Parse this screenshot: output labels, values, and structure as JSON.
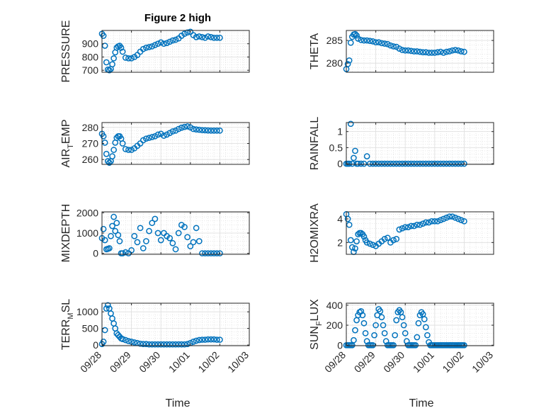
{
  "figure": {
    "title": "Figure 2 high"
  },
  "chart_data": [
    {
      "type": "scatter",
      "ylabel": "PRESSURE",
      "ylabel_sub": "",
      "ylabel_tail": "",
      "yticks": [
        700,
        800,
        900
      ],
      "ytick_labels": [
        "700",
        "800",
        "900"
      ],
      "ylim": [
        685,
        1000
      ],
      "x": [
        0.0,
        0.05,
        0.1,
        0.15,
        0.2,
        0.25,
        0.3,
        0.35,
        0.4,
        0.45,
        0.5,
        0.55,
        0.6,
        0.65,
        0.7,
        0.8,
        0.9,
        1.0,
        1.1,
        1.2,
        1.3,
        1.4,
        1.5,
        1.6,
        1.7,
        1.8,
        1.9,
        2.0,
        2.1,
        2.2,
        2.3,
        2.4,
        2.5,
        2.6,
        2.7,
        2.8,
        2.9,
        3.0,
        3.1,
        3.2,
        3.3,
        3.4,
        3.5,
        3.6,
        3.7,
        3.8,
        3.9,
        4.0
      ],
      "values": [
        975,
        960,
        885,
        760,
        705,
        700,
        710,
        745,
        790,
        835,
        870,
        880,
        885,
        870,
        840,
        795,
        790,
        790,
        800,
        815,
        840,
        860,
        870,
        875,
        880,
        890,
        900,
        910,
        900,
        905,
        915,
        925,
        930,
        940,
        960,
        975,
        985,
        990,
        965,
        950,
        955,
        950,
        945,
        955,
        950,
        945,
        945,
        945
      ],
      "xlim": [
        0,
        5
      ]
    },
    {
      "type": "scatter",
      "ylabel": "THETA",
      "ylabel_sub": "",
      "ylabel_tail": "",
      "yticks": [
        280,
        285
      ],
      "ytick_labels": [
        "280",
        "285"
      ],
      "ylim": [
        278,
        287.2
      ],
      "x": [
        0.0,
        0.05,
        0.1,
        0.15,
        0.2,
        0.25,
        0.3,
        0.35,
        0.4,
        0.5,
        0.6,
        0.7,
        0.8,
        0.9,
        1.0,
        1.1,
        1.2,
        1.3,
        1.4,
        1.5,
        1.6,
        1.7,
        1.8,
        1.9,
        2.0,
        2.1,
        2.2,
        2.3,
        2.4,
        2.5,
        2.6,
        2.7,
        2.8,
        2.9,
        3.0,
        3.1,
        3.2,
        3.3,
        3.4,
        3.5,
        3.6,
        3.7,
        3.8,
        3.9,
        4.0
      ],
      "values": [
        278.7,
        279.8,
        280.6,
        284.5,
        285.8,
        286.3,
        286.4,
        286.1,
        285.4,
        285.1,
        285.0,
        285.0,
        284.9,
        284.8,
        284.6,
        284.6,
        284.4,
        284.3,
        284.2,
        283.9,
        283.7,
        283.6,
        283.2,
        282.9,
        282.8,
        282.8,
        282.7,
        282.6,
        282.6,
        282.5,
        282.4,
        282.4,
        282.3,
        282.3,
        282.3,
        282.4,
        282.5,
        282.3,
        282.5,
        282.6,
        282.8,
        282.9,
        282.8,
        282.6,
        282.5
      ],
      "xlim": [
        0,
        5
      ]
    },
    {
      "type": "scatter",
      "ylabel": "AIR",
      "ylabel_sub": "T",
      "ylabel_tail": "EMP",
      "yticks": [
        260,
        270,
        280
      ],
      "ytick_labels": [
        "260",
        "270",
        "280"
      ],
      "ylim": [
        257,
        283
      ],
      "x": [
        0.0,
        0.05,
        0.1,
        0.15,
        0.2,
        0.25,
        0.3,
        0.35,
        0.4,
        0.45,
        0.5,
        0.55,
        0.6,
        0.65,
        0.7,
        0.8,
        0.9,
        1.0,
        1.1,
        1.2,
        1.3,
        1.4,
        1.5,
        1.6,
        1.7,
        1.8,
        1.9,
        2.0,
        2.1,
        2.2,
        2.3,
        2.4,
        2.5,
        2.6,
        2.7,
        2.8,
        2.9,
        3.0,
        3.1,
        3.2,
        3.3,
        3.4,
        3.5,
        3.6,
        3.7,
        3.8,
        3.9,
        4.0
      ],
      "values": [
        276,
        274.5,
        270.5,
        263.5,
        259,
        258,
        259,
        262,
        266,
        270.5,
        273.5,
        274.5,
        274.5,
        273,
        270,
        266.5,
        266,
        266,
        267,
        268.5,
        270,
        272,
        273,
        273.5,
        274,
        274.5,
        275.5,
        276,
        274.8,
        275.5,
        276.5,
        277.5,
        278,
        279,
        279.8,
        280.3,
        280.6,
        280,
        279,
        278.7,
        278.5,
        278.3,
        278.2,
        278.1,
        278,
        278,
        278,
        278
      ],
      "xlim": [
        0,
        5
      ]
    },
    {
      "type": "scatter",
      "ylabel": "RAINFALL",
      "ylabel_sub": "",
      "ylabel_tail": "",
      "yticks": [
        0,
        0.5,
        1
      ],
      "ytick_labels": [
        "0",
        "0.5",
        "1"
      ],
      "ylim": [
        -0.02,
        1.28
      ],
      "x": [
        0.0,
        0.05,
        0.1,
        0.15,
        0.2,
        0.25,
        0.3,
        0.35,
        0.4,
        0.5,
        0.6,
        0.7,
        0.8,
        0.9,
        1.0,
        1.1,
        1.2,
        1.3,
        1.4,
        1.5,
        1.6,
        1.7,
        1.8,
        1.9,
        2.0,
        2.1,
        2.2,
        2.3,
        2.4,
        2.5,
        2.6,
        2.7,
        2.8,
        2.9,
        3.0,
        3.1,
        3.2,
        3.3,
        3.4,
        3.5,
        3.6,
        3.7,
        3.8,
        3.9,
        4.0
      ],
      "values": [
        0,
        0,
        0,
        1.24,
        0,
        0.18,
        0.4,
        0,
        0,
        0,
        0,
        0.23,
        0,
        0,
        0,
        0,
        0,
        0,
        0,
        0,
        0,
        0,
        0,
        0,
        0,
        0,
        0,
        0,
        0,
        0,
        0,
        0,
        0,
        0,
        0,
        0,
        0,
        0,
        0,
        0,
        0,
        0,
        0,
        0,
        0
      ],
      "xlim": [
        0,
        5
      ]
    },
    {
      "type": "scatter",
      "ylabel": "MIXDEPTH",
      "ylabel_sub": "",
      "ylabel_tail": "",
      "yticks": [
        0,
        1000,
        2000
      ],
      "ytick_labels": [
        "0",
        "1000",
        "2000"
      ],
      "ylim": [
        -50,
        2050
      ],
      "x": [
        0.0,
        0.05,
        0.1,
        0.15,
        0.2,
        0.25,
        0.3,
        0.35,
        0.4,
        0.45,
        0.5,
        0.55,
        0.6,
        0.65,
        0.7,
        0.8,
        0.9,
        1.0,
        1.1,
        1.2,
        1.3,
        1.4,
        1.5,
        1.6,
        1.7,
        1.8,
        1.9,
        2.0,
        2.1,
        2.2,
        2.3,
        2.4,
        2.5,
        2.6,
        2.7,
        2.8,
        2.9,
        3.0,
        3.1,
        3.2,
        3.3,
        3.4,
        3.5,
        3.6,
        3.7,
        3.8,
        3.9,
        4.0
      ],
      "values": [
        750,
        1200,
        650,
        200,
        220,
        250,
        850,
        1350,
        1800,
        1100,
        1500,
        900,
        600,
        0,
        0,
        50,
        0,
        150,
        850,
        550,
        1250,
        250,
        600,
        1100,
        1500,
        1700,
        1000,
        650,
        1000,
        850,
        750,
        500,
        200,
        1000,
        1400,
        1300,
        800,
        350,
        550,
        1250,
        600,
        0,
        0,
        0,
        0,
        0,
        0,
        0
      ],
      "xlim": [
        0,
        5
      ]
    },
    {
      "type": "scatter",
      "ylabel": "H2OMIXRA",
      "ylabel_sub": "",
      "ylabel_tail": "",
      "yticks": [
        2,
        4
      ],
      "ytick_labels": [
        "2",
        "4"
      ],
      "ylim": [
        1,
        4.6
      ],
      "x": [
        0.0,
        0.05,
        0.1,
        0.15,
        0.2,
        0.25,
        0.3,
        0.35,
        0.4,
        0.45,
        0.5,
        0.55,
        0.6,
        0.65,
        0.7,
        0.8,
        0.9,
        1.0,
        1.1,
        1.2,
        1.3,
        1.4,
        1.5,
        1.6,
        1.7,
        1.8,
        1.9,
        2.0,
        2.1,
        2.2,
        2.3,
        2.4,
        2.5,
        2.6,
        2.7,
        2.8,
        2.9,
        3.0,
        3.1,
        3.2,
        3.3,
        3.4,
        3.5,
        3.6,
        3.7,
        3.8,
        3.9,
        4.0
      ],
      "values": [
        4.4,
        4.0,
        3.5,
        2.2,
        1.6,
        1.2,
        1.5,
        2.1,
        2.7,
        2.8,
        2.8,
        2.7,
        2.5,
        2.2,
        2.0,
        1.9,
        1.8,
        1.7,
        1.9,
        2.1,
        2.3,
        2.4,
        2.0,
        2.2,
        2.3,
        3.1,
        3.2,
        3.3,
        3.3,
        3.4,
        3.4,
        3.5,
        3.5,
        3.6,
        3.7,
        3.7,
        3.8,
        3.8,
        3.8,
        3.9,
        4.0,
        4.1,
        4.2,
        4.2,
        4.1,
        4.0,
        3.9,
        3.8
      ],
      "xlim": [
        0,
        5
      ]
    },
    {
      "type": "scatter",
      "ylabel": "TERR",
      "ylabel_sub": "M",
      "ylabel_tail": "SL",
      "yticks": [
        0,
        500,
        1000
      ],
      "ytick_labels": [
        "0",
        "500",
        "1000"
      ],
      "ylim": [
        -20,
        1260
      ],
      "x": [
        0.0,
        0.05,
        0.1,
        0.15,
        0.2,
        0.25,
        0.3,
        0.35,
        0.4,
        0.45,
        0.5,
        0.55,
        0.6,
        0.65,
        0.7,
        0.8,
        0.9,
        1.0,
        1.1,
        1.2,
        1.3,
        1.4,
        1.5,
        1.6,
        1.7,
        1.8,
        1.9,
        2.0,
        2.1,
        2.2,
        2.3,
        2.4,
        2.5,
        2.6,
        2.7,
        2.8,
        2.9,
        3.0,
        3.1,
        3.2,
        3.3,
        3.4,
        3.5,
        3.6,
        3.7,
        3.8,
        3.9,
        4.0
      ],
      "values": [
        30,
        100,
        450,
        1100,
        1200,
        1100,
        950,
        800,
        650,
        500,
        350,
        300,
        250,
        200,
        180,
        150,
        120,
        100,
        80,
        60,
        40,
        30,
        30,
        20,
        20,
        20,
        20,
        20,
        20,
        20,
        20,
        20,
        20,
        20,
        20,
        20,
        30,
        60,
        100,
        130,
        150,
        160,
        160,
        170,
        170,
        170,
        160,
        160
      ],
      "xlim": [
        0,
        5
      ]
    },
    {
      "type": "scatter",
      "ylabel": "SUN",
      "ylabel_sub": "F",
      "ylabel_tail": "LUX",
      "yticks": [
        0,
        200,
        400
      ],
      "ytick_labels": [
        "0",
        "200",
        "400"
      ],
      "ylim": [
        -5,
        420
      ],
      "x": [
        0.0,
        0.05,
        0.1,
        0.15,
        0.2,
        0.25,
        0.3,
        0.35,
        0.4,
        0.45,
        0.5,
        0.55,
        0.6,
        0.65,
        0.7,
        0.75,
        0.8,
        0.85,
        0.9,
        0.95,
        1.0,
        1.05,
        1.1,
        1.15,
        1.2,
        1.25,
        1.3,
        1.35,
        1.4,
        1.45,
        1.5,
        1.55,
        1.6,
        1.65,
        1.7,
        1.75,
        1.8,
        1.85,
        1.9,
        1.95,
        2.0,
        2.05,
        2.1,
        2.15,
        2.2,
        2.25,
        2.3,
        2.35,
        2.4,
        2.45,
        2.5,
        2.55,
        2.6,
        2.65,
        2.7,
        2.75,
        2.8,
        2.85,
        2.9,
        2.95,
        3.0,
        3.05,
        3.1,
        3.15,
        3.2,
        3.25,
        3.3,
        3.35,
        3.4,
        3.45,
        3.5,
        3.55,
        3.6,
        3.65,
        3.7,
        3.75,
        3.8,
        3.85,
        3.9,
        3.95,
        4.0
      ],
      "values": [
        0,
        0,
        0,
        0,
        0,
        50,
        150,
        250,
        300,
        330,
        340,
        300,
        220,
        120,
        40,
        0,
        0,
        0,
        0,
        100,
        200,
        300,
        360,
        340,
        280,
        200,
        120,
        40,
        0,
        0,
        0,
        0,
        0,
        100,
        250,
        330,
        350,
        330,
        280,
        200,
        120,
        40,
        0,
        0,
        0,
        0,
        0,
        0,
        80,
        220,
        300,
        330,
        310,
        260,
        180,
        100,
        30,
        0,
        0,
        0,
        0,
        0,
        0,
        0,
        0,
        0,
        0,
        0,
        0,
        0,
        0,
        0,
        0,
        0,
        0,
        0,
        0,
        0,
        0,
        0,
        0
      ],
      "xlim": [
        0,
        5
      ]
    }
  ],
  "xticks": [
    0,
    1,
    2,
    3,
    4,
    5
  ],
  "xtick_labels": [
    "09/28",
    "09/29",
    "09/30",
    "10/01",
    "10/02",
    "10/03"
  ],
  "xlabel": "Time",
  "colors": {
    "marker": "#0072bd",
    "grid": "#d9d9d9",
    "axis": "#262626"
  }
}
